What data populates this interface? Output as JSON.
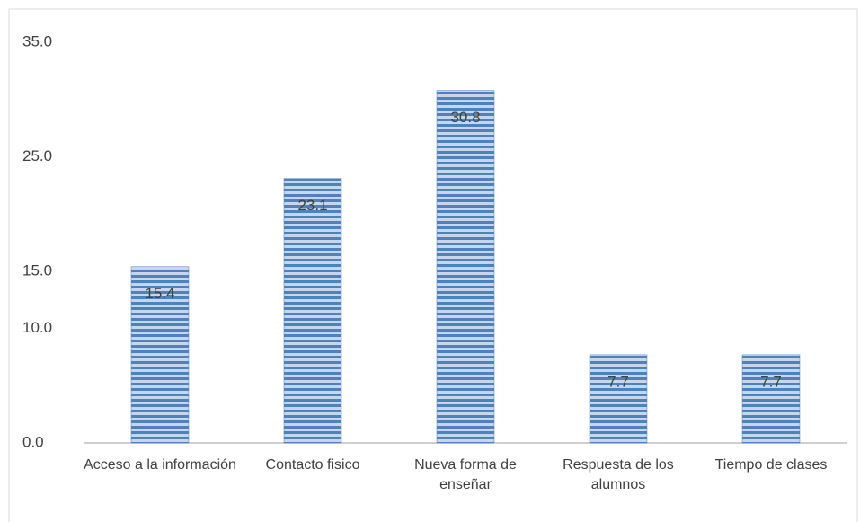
{
  "chart_data": {
    "type": "bar",
    "categories": [
      "Acceso a la información",
      "Contacto fisico",
      "Nueva forma de enseñar",
      "Respuesta de los alumnos",
      "Tiempo de clases"
    ],
    "values": [
      15.4,
      23.1,
      30.8,
      7.7,
      7.7
    ],
    "color": "#4f81bd",
    "ylim": [
      0,
      35
    ],
    "yticks": [
      {
        "value": 0,
        "label": "0.0"
      },
      {
        "value": 10,
        "label": "10.0"
      },
      {
        "value": 15,
        "label": "15.0"
      },
      {
        "value": 25,
        "label": "25.0"
      },
      {
        "value": 35,
        "label": "35.0"
      }
    ],
    "grid": false
  }
}
